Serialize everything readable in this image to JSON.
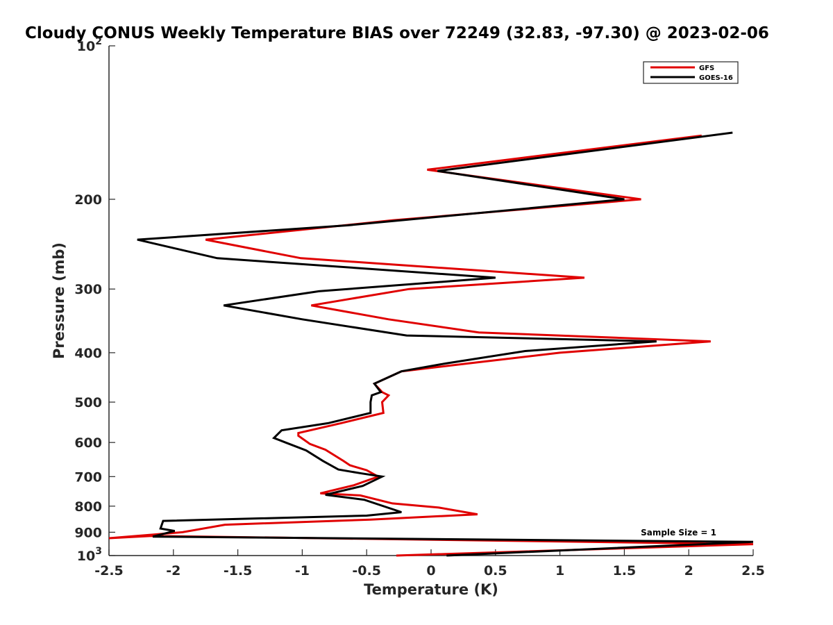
{
  "chart_data": {
    "type": "line",
    "title": "Cloudy CONUS Weekly Temperature BIAS over 72249 (32.83, -97.30) @ 2023-02-06",
    "xlabel": "Temperature (K)",
    "ylabel": "Pressure (mb)",
    "xlim": [
      -2.5,
      2.5
    ],
    "ylim": [
      100,
      1000
    ],
    "y_scale": "log",
    "y_reversed": true,
    "grid": false,
    "legend_position": "top-right",
    "x_ticks": [
      -2.5,
      -2,
      -1.5,
      -1,
      -0.5,
      0,
      0.5,
      1,
      1.5,
      2,
      2.5
    ],
    "x_tick_labels": [
      "-2.5",
      "-2",
      "-1.5",
      "-1",
      "-0.5",
      "0",
      "0.5",
      "1",
      "1.5",
      "2",
      "2.5"
    ],
    "y_ticks": [
      100,
      200,
      300,
      400,
      500,
      600,
      700,
      800,
      900,
      1000
    ],
    "y_tick_labels": [
      {
        "base": "10",
        "exp": "2"
      },
      {
        "base": "200",
        "exp": ""
      },
      {
        "base": "300",
        "exp": ""
      },
      {
        "base": "400",
        "exp": ""
      },
      {
        "base": "500",
        "exp": ""
      },
      {
        "base": "600",
        "exp": ""
      },
      {
        "base": "700",
        "exp": ""
      },
      {
        "base": "800",
        "exp": ""
      },
      {
        "base": "900",
        "exp": ""
      },
      {
        "base": "10",
        "exp": "3"
      }
    ],
    "annotation": "Sample Size = 1",
    "series": [
      {
        "name": "GFS",
        "color": "#e00000",
        "points": [
          [
            2.1,
            150
          ],
          [
            -0.03,
            175
          ],
          [
            1.63,
            200
          ],
          [
            -0.3,
            220
          ],
          [
            -1.75,
            240
          ],
          [
            -1.01,
            261
          ],
          [
            1.19,
            285
          ],
          [
            -0.17,
            300
          ],
          [
            -0.93,
            323
          ],
          [
            -0.33,
            344
          ],
          [
            0.37,
            365
          ],
          [
            2.17,
            380
          ],
          [
            1.0,
            400
          ],
          [
            0.28,
            420
          ],
          [
            -0.23,
            435
          ],
          [
            -0.44,
            460
          ],
          [
            -0.38,
            478
          ],
          [
            -0.33,
            485
          ],
          [
            -0.38,
            500
          ],
          [
            -0.37,
            525
          ],
          [
            -0.7,
            550
          ],
          [
            -1.03,
            575
          ],
          [
            -1.03,
            582
          ],
          [
            -0.94,
            604
          ],
          [
            -0.82,
            620
          ],
          [
            -0.68,
            652
          ],
          [
            -0.63,
            665
          ],
          [
            -0.5,
            680
          ],
          [
            -0.41,
            700
          ],
          [
            -0.6,
            728
          ],
          [
            -0.86,
            755
          ],
          [
            -0.55,
            762
          ],
          [
            -0.3,
            790
          ],
          [
            0.06,
            805
          ],
          [
            0.36,
            830
          ],
          [
            -0.47,
            850
          ],
          [
            -1.6,
            870
          ],
          [
            -1.93,
            900
          ],
          [
            -2.51,
            925
          ],
          [
            -2.17,
            915
          ],
          [
            2.5,
            950
          ],
          [
            -0.27,
            1000
          ]
        ]
      },
      {
        "name": "GOES-16",
        "color": "#000000",
        "points": [
          [
            2.34,
            148
          ],
          [
            0.05,
            176
          ],
          [
            1.5,
            200
          ],
          [
            -0.65,
            225
          ],
          [
            -2.28,
            240
          ],
          [
            -1.66,
            261
          ],
          [
            0.5,
            285
          ],
          [
            -0.87,
            303
          ],
          [
            -1.61,
            323
          ],
          [
            -1.0,
            344
          ],
          [
            -0.19,
            370
          ],
          [
            1.75,
            380
          ],
          [
            0.73,
            397
          ],
          [
            0.11,
            420
          ],
          [
            -0.23,
            435
          ],
          [
            -0.44,
            460
          ],
          [
            -0.39,
            478
          ],
          [
            -0.46,
            485
          ],
          [
            -0.47,
            500
          ],
          [
            -0.47,
            525
          ],
          [
            -0.8,
            550
          ],
          [
            -1.16,
            568
          ],
          [
            -1.22,
            588
          ],
          [
            -1.13,
            600
          ],
          [
            -0.97,
            622
          ],
          [
            -0.84,
            652
          ],
          [
            -0.72,
            678
          ],
          [
            -0.54,
            690
          ],
          [
            -0.38,
            700
          ],
          [
            -0.53,
            730
          ],
          [
            -0.82,
            760
          ],
          [
            -0.52,
            777
          ],
          [
            -0.23,
            822
          ],
          [
            -0.5,
            835
          ],
          [
            -2.08,
            855
          ],
          [
            -2.1,
            885
          ],
          [
            -1.99,
            895
          ],
          [
            -2.16,
            918
          ],
          [
            2.5,
            940
          ],
          [
            0.12,
            1000
          ]
        ]
      }
    ]
  }
}
